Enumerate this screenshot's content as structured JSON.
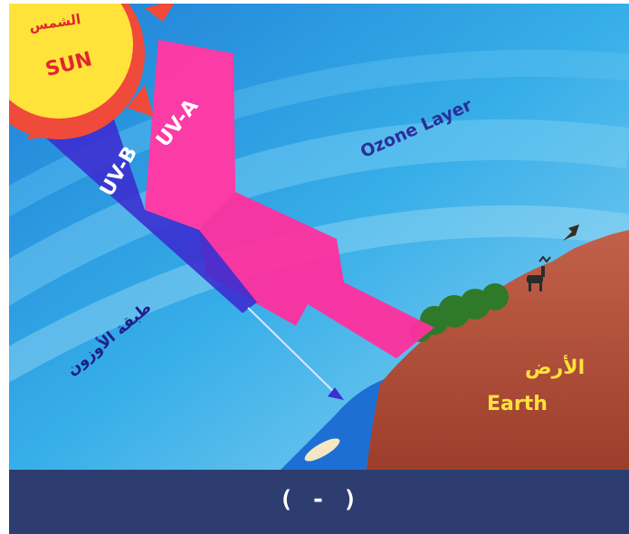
{
  "diagram": {
    "sun": {
      "label_en": "SUN",
      "label_ar": "الشمس"
    },
    "rays": [
      {
        "label": "UV-A",
        "color": "#ff2f9e"
      },
      {
        "label": "UV-B",
        "color": "#3b2fd0"
      }
    ],
    "ozone_layer": {
      "label_en": "Ozone Layer",
      "label_ar": "طبقة الأوزون"
    },
    "earth": {
      "label_en": "Earth",
      "label_ar": "الأرض"
    },
    "colors": {
      "sky": "#2fa8e6",
      "earth": "#b9553f",
      "sea": "#1e6fd4",
      "sun": "#ffe23a",
      "sun_rays": "#f04a3a"
    }
  },
  "caption": {
    "text": "( - )"
  }
}
